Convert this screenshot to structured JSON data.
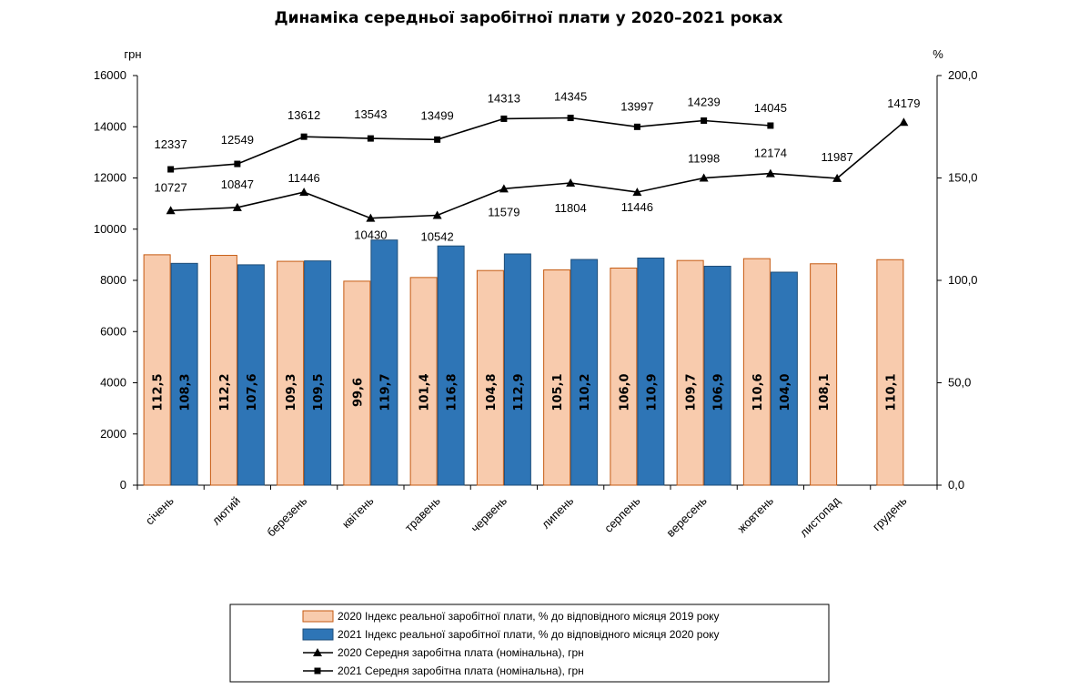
{
  "chart_data": {
    "type": "bar",
    "title": "Динаміка середньої заробітної плати у 2020–2021 роках",
    "y_left_unit": "грн",
    "y_right_unit": "%",
    "ylim_left": [
      0,
      16000
    ],
    "ylim_right": [
      0,
      200
    ],
    "y_left_ticks": [
      "0",
      "2000",
      "4000",
      "6000",
      "8000",
      "10000",
      "12000",
      "14000",
      "16000"
    ],
    "y_right_ticks": [
      "0,0",
      "50,0",
      "100,0",
      "150,0",
      "200,0"
    ],
    "grid": false,
    "legend_position": "bottom",
    "categories": [
      "січень",
      "лютий",
      "березень",
      "квітень",
      "травень",
      "червень",
      "липень",
      "серпень",
      "вересень",
      "жовтень",
      "листопад",
      "грудень"
    ],
    "series": [
      {
        "name": "2020 Індекс реальної заробітної плати, % до відповідного місяця 2019 року",
        "type": "bar",
        "axis": "right",
        "color": "#F8CBAD",
        "stroke": "#C55A11",
        "values": [
          112.5,
          112.2,
          109.3,
          99.6,
          101.4,
          104.8,
          105.1,
          106.0,
          109.7,
          110.6,
          108.1,
          110.1
        ],
        "labels": [
          "112,5",
          "112,2",
          "109,3",
          "99,6",
          "101,4",
          "104,8",
          "105,1",
          "106,0",
          "109,7",
          "110,6",
          "108,1",
          "110,1"
        ]
      },
      {
        "name": "2021 Індекс реальної заробітної плати, % до відповідного місяця 2020 року",
        "type": "bar",
        "axis": "right",
        "color": "#2E75B6",
        "stroke": "#1F4E79",
        "values": [
          108.3,
          107.6,
          109.5,
          119.7,
          116.8,
          112.9,
          110.2,
          110.9,
          106.9,
          104.0,
          null,
          null
        ],
        "labels": [
          "108,3",
          "107,6",
          "109,5",
          "119,7",
          "116,8",
          "112,9",
          "110,2",
          "110,9",
          "106,9",
          "104,0",
          "",
          ""
        ]
      },
      {
        "name": "2020 Середня заробітна плата (номінальна), грн",
        "type": "line",
        "axis": "left",
        "marker": "triangle",
        "color": "#000000",
        "values": [
          10727,
          10847,
          11446,
          10430,
          10542,
          11579,
          11804,
          11446,
          11998,
          12174,
          11987,
          14179
        ],
        "labels": [
          "10727",
          "10847",
          "11446",
          "10430",
          "10542",
          "11579",
          "11804",
          "11446",
          "11998",
          "12174",
          "11987",
          "14179"
        ]
      },
      {
        "name": "2021 Середня заробітна плата (номінальна), грн",
        "type": "line",
        "axis": "left",
        "marker": "square",
        "color": "#000000",
        "values": [
          12337,
          12549,
          13612,
          13543,
          13499,
          14313,
          14345,
          13997,
          14239,
          14045,
          null,
          null
        ],
        "labels": [
          "12337",
          "12549",
          "13612",
          "13543",
          "13499",
          "14313",
          "14345",
          "13997",
          "14239",
          "14045",
          "",
          ""
        ]
      }
    ]
  }
}
